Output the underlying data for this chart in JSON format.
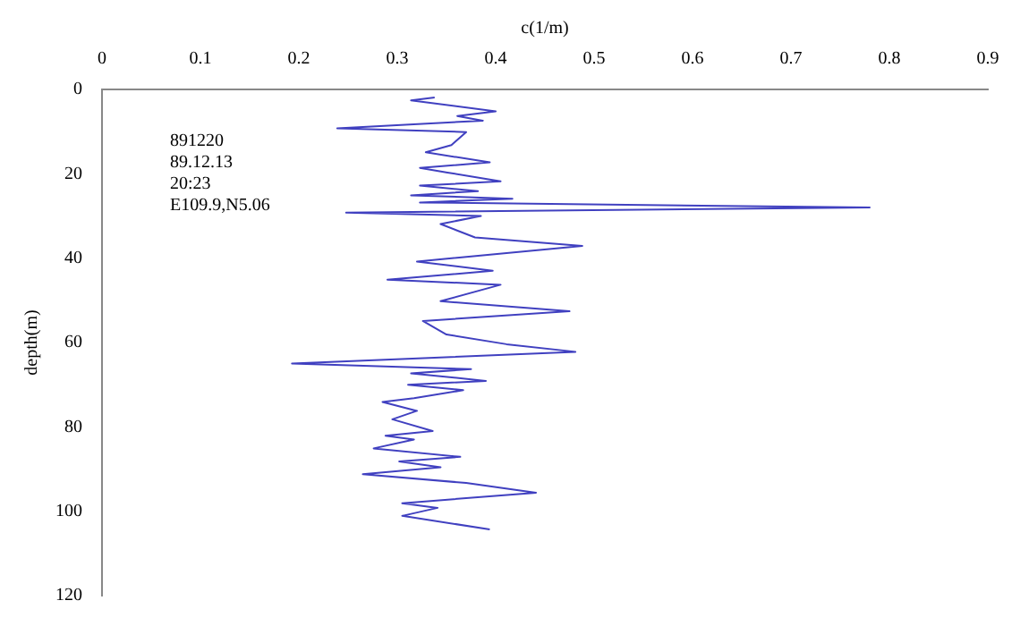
{
  "chart_data": {
    "type": "line",
    "xlabel": "c(1/m)",
    "ylabel": "depth(m)",
    "annotations": [
      "891220",
      "89.12.13",
      "20:23",
      "E109.9,N5.06"
    ],
    "xlim": [
      0,
      0.9
    ],
    "xticks": [
      0,
      0.1,
      0.2,
      0.3,
      0.4,
      0.5,
      0.6,
      0.7,
      0.8,
      0.9
    ],
    "ylim": [
      120,
      0
    ],
    "yticks": [
      0,
      20,
      40,
      60,
      80,
      100,
      120
    ],
    "grid": false,
    "legend": false,
    "marker": "none",
    "line_style": "solid",
    "series": [
      {
        "color": "#4040c0",
        "x": [
          0.338,
          0.314,
          0.4,
          0.361,
          0.387,
          0.239,
          0.37,
          0.355,
          0.329,
          0.394,
          0.323,
          0.351,
          0.405,
          0.323,
          0.382,
          0.314,
          0.417,
          0.323,
          0.78,
          0.248,
          0.385,
          0.344,
          0.379,
          0.488,
          0.32,
          0.397,
          0.29,
          0.405,
          0.344,
          0.475,
          0.326,
          0.35,
          0.411,
          0.481,
          0.193,
          0.375,
          0.314,
          0.39,
          0.311,
          0.367,
          0.317,
          0.285,
          0.32,
          0.295,
          0.336,
          0.288,
          0.317,
          0.276,
          0.364,
          0.302,
          0.344,
          0.265,
          0.37,
          0.441,
          0.305,
          0.341,
          0.305,
          0.394
        ],
        "values": [
          1.9,
          2.6,
          5.2,
          6.3,
          7.4,
          9.2,
          10.1,
          13.2,
          14.9,
          17.3,
          18.6,
          19.7,
          21.8,
          22.8,
          24.1,
          25.1,
          25.9,
          26.8,
          28,
          29.2,
          30,
          31.9,
          35.1,
          37.1,
          40.8,
          43,
          45.1,
          46.3,
          50.2,
          52.6,
          54.9,
          58.1,
          60.4,
          62.2,
          65,
          66.3,
          67.3,
          69.1,
          70,
          71.3,
          73.2,
          74.1,
          76.2,
          78.2,
          81,
          82.1,
          83,
          85.1,
          87.1,
          88.2,
          89.6,
          91.2,
          93.3,
          95.6,
          98.1,
          99.2,
          101.1,
          104.3
        ]
      }
    ]
  }
}
